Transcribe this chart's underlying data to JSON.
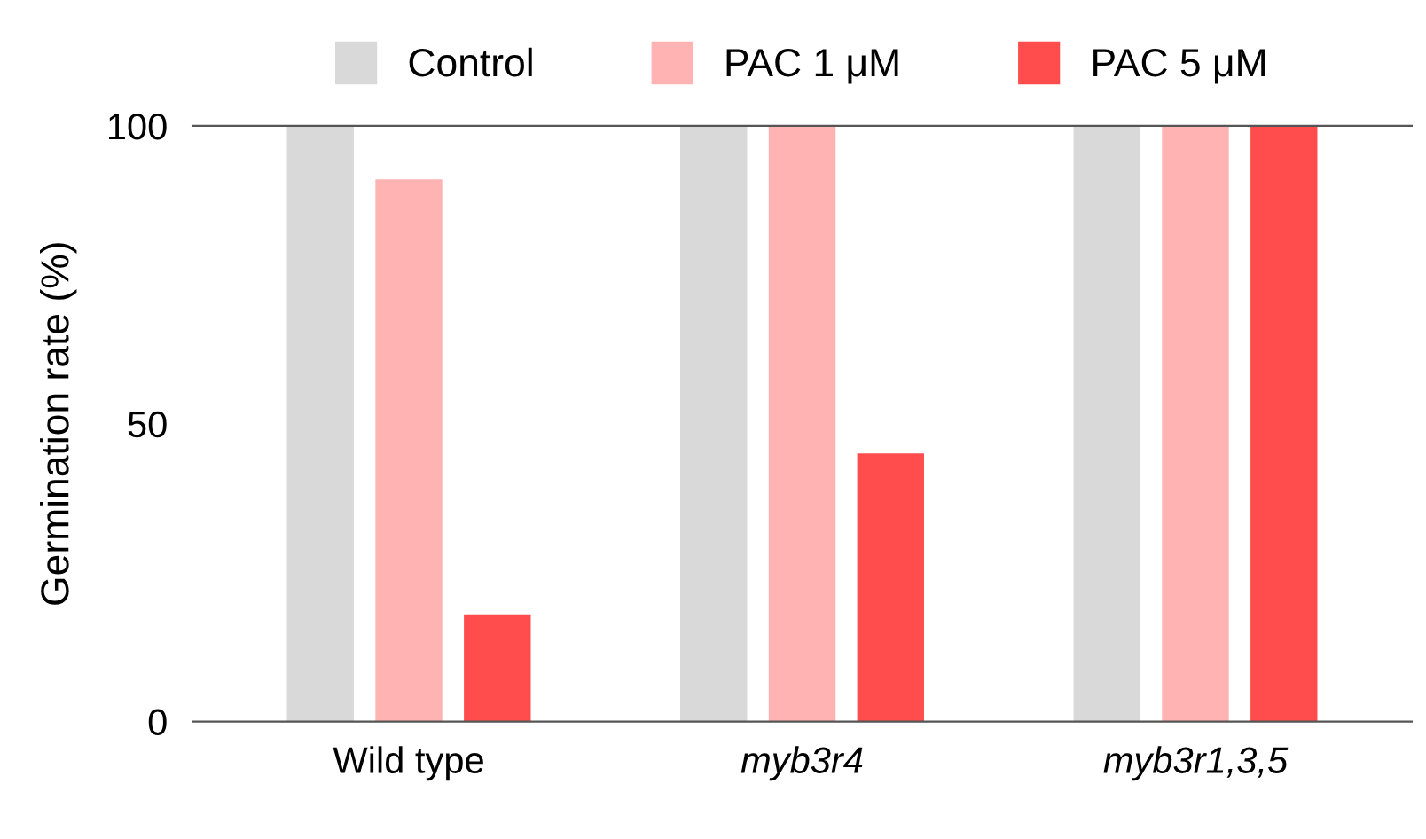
{
  "chart_data": {
    "type": "bar",
    "ylabel": "Germination rate (%)",
    "categories": [
      "Wild type",
      "myb3r4",
      "myb3r1,3,5"
    ],
    "series": [
      {
        "name": "Control",
        "color": "#d9d9d9",
        "values": [
          100,
          100,
          100
        ]
      },
      {
        "name": "PAC 1 μM",
        "color": "#ffb3b3",
        "values": [
          91,
          100,
          100
        ]
      },
      {
        "name": "PAC 5 μM",
        "color": "#ff4d4d",
        "values": [
          18,
          45,
          100
        ]
      }
    ],
    "ylim": [
      0,
      100
    ],
    "yticks": [
      0,
      50,
      100
    ],
    "legend": "top",
    "grid": false
  }
}
